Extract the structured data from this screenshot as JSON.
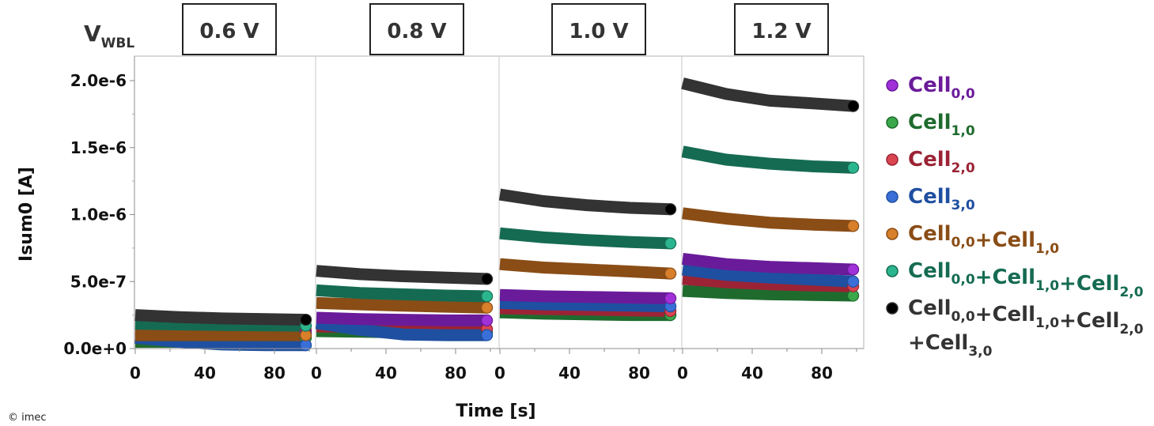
{
  "chart_data": {
    "type": "scatter",
    "title": "",
    "header_label": {
      "main": "V",
      "sub": "WBL"
    },
    "xlabel": "Time [s]",
    "ylabel": "Isum0 [A]",
    "ylim": [
      0,
      2.2e-06
    ],
    "yticks": [
      0,
      5e-07,
      1e-06,
      1.5e-06,
      2e-06
    ],
    "ytick_labels": [
      "0.0e+0",
      "5.0e-7",
      "1.0e-6",
      "1.5e-6",
      "2.0e-6"
    ],
    "xlim_per_panel": [
      0,
      104
    ],
    "xticks": [
      0,
      40,
      80
    ],
    "xtick_labels": [
      "0",
      "40",
      "80"
    ],
    "grid": false,
    "legend_placement": "right",
    "copyright": "© imec",
    "panels": [
      {
        "voltage_label": "0.6 V",
        "series": [
          {
            "name": "Cell0,0",
            "t": [
              0,
              25,
              50,
              75,
              100
            ],
            "values": [
              1.25e-07,
              1.2e-07,
              1.18e-07,
              1.17e-07,
              1.15e-07
            ]
          },
          {
            "name": "Cell1,0",
            "t": [
              0,
              25,
              50,
              75,
              100
            ],
            "values": [
              5e-08,
              5e-08,
              5e-08,
              5e-08,
              8e-08
            ]
          },
          {
            "name": "Cell2,0",
            "t": [
              0,
              25,
              50,
              75,
              100
            ],
            "values": [
              1.5e-07,
              1.45e-07,
              1.4e-07,
              1.38e-07,
              1.35e-07
            ]
          },
          {
            "name": "Cell3,0",
            "t": [
              0,
              25,
              50,
              75,
              100
            ],
            "values": [
              8e-08,
              5e-08,
              3e-08,
              2.5e-08,
              2.5e-08
            ]
          },
          {
            "name": "Cell0,0+Cell1,0",
            "t": [
              0,
              25,
              50,
              75,
              100
            ],
            "values": [
              1e-07,
              1e-07,
              1e-07,
              1e-07,
              1e-07
            ]
          },
          {
            "name": "Cell0,0+Cell1,0+Cell2,0",
            "t": [
              0,
              25,
              50,
              75,
              100
            ],
            "values": [
              1.85e-07,
              1.8e-07,
              1.75e-07,
              1.72e-07,
              1.7e-07
            ]
          },
          {
            "name": "Cell0,0+Cell1,0+Cell2,0+Cell3,0",
            "t": [
              0,
              25,
              50,
              75,
              100
            ],
            "values": [
              2.5e-07,
              2.35e-07,
              2.25e-07,
              2.2e-07,
              2.15e-07
            ]
          }
        ]
      },
      {
        "voltage_label": "0.8 V",
        "series": [
          {
            "name": "Cell0,0",
            "t": [
              0,
              25,
              50,
              75,
              100
            ],
            "values": [
              2.3e-07,
              2.2e-07,
              2.15e-07,
              2.1e-07,
              2.1e-07
            ]
          },
          {
            "name": "Cell1,0",
            "t": [
              0,
              25,
              50,
              75,
              100
            ],
            "values": [
              1.3e-07,
              1.25e-07,
              1.2e-07,
              1.2e-07,
              1.2e-07
            ]
          },
          {
            "name": "Cell2,0",
            "t": [
              0,
              25,
              50,
              75,
              100
            ],
            "values": [
              1.65e-07,
              1.6e-07,
              1.55e-07,
              1.5e-07,
              1.45e-07
            ]
          },
          {
            "name": "Cell3,0",
            "t": [
              0,
              25,
              50,
              75,
              100
            ],
            "values": [
              1.9e-07,
              1.4e-07,
              1.05e-07,
              1e-07,
              1e-07
            ]
          },
          {
            "name": "Cell0,0+Cell1,0",
            "t": [
              0,
              25,
              50,
              75,
              100
            ],
            "values": [
              3.4e-07,
              3.3e-07,
              3.2e-07,
              3.12e-07,
              3.05e-07
            ]
          },
          {
            "name": "Cell0,0+Cell1,0+Cell2,0",
            "t": [
              0,
              25,
              50,
              75,
              100
            ],
            "values": [
              4.35e-07,
              4.15e-07,
              4.05e-07,
              3.95e-07,
              3.9e-07
            ]
          },
          {
            "name": "Cell0,0+Cell1,0+Cell2,0+Cell3,0",
            "t": [
              0,
              25,
              50,
              75,
              100
            ],
            "values": [
              5.8e-07,
              5.55e-07,
              5.4e-07,
              5.3e-07,
              5.2e-07
            ]
          }
        ]
      },
      {
        "voltage_label": "1.0 V",
        "series": [
          {
            "name": "Cell0,0",
            "t": [
              0,
              25,
              50,
              75,
              100
            ],
            "values": [
              4e-07,
              3.9e-07,
              3.85e-07,
              3.8e-07,
              3.75e-07
            ]
          },
          {
            "name": "Cell1,0",
            "t": [
              0,
              25,
              50,
              75,
              100
            ],
            "values": [
              2.7e-07,
              2.6e-07,
              2.55e-07,
              2.5e-07,
              2.5e-07
            ]
          },
          {
            "name": "Cell2,0",
            "t": [
              0,
              25,
              50,
              75,
              100
            ],
            "values": [
              3e-07,
              2.95e-07,
              2.9e-07,
              2.85e-07,
              2.8e-07
            ]
          },
          {
            "name": "Cell3,0",
            "t": [
              0,
              25,
              50,
              75,
              100
            ],
            "values": [
              3.4e-07,
              3.3e-07,
              3.25e-07,
              3.2e-07,
              3.15e-07
            ]
          },
          {
            "name": "Cell0,0+Cell1,0",
            "t": [
              0,
              25,
              50,
              75,
              100
            ],
            "values": [
              6.3e-07,
              6.05e-07,
              5.9e-07,
              5.75e-07,
              5.6e-07
            ]
          },
          {
            "name": "Cell0,0+Cell1,0+Cell2,0",
            "t": [
              0,
              25,
              50,
              75,
              100
            ],
            "values": [
              8.6e-07,
              8.3e-07,
              8.1e-07,
              7.95e-07,
              7.85e-07
            ]
          },
          {
            "name": "Cell0,0+Cell1,0+Cell2,0+Cell3,0",
            "t": [
              0,
              25,
              50,
              75,
              100
            ],
            "values": [
              1.15e-06,
              1.1e-06,
              1.07e-06,
              1.05e-06,
              1.04e-06
            ]
          }
        ]
      },
      {
        "voltage_label": "1.2 V",
        "series": [
          {
            "name": "Cell0,0",
            "t": [
              0,
              25,
              50,
              75,
              100
            ],
            "values": [
              6.7e-07,
              6.3e-07,
              6.1e-07,
              6e-07,
              5.9e-07
            ]
          },
          {
            "name": "Cell1,0",
            "t": [
              0,
              25,
              50,
              75,
              100
            ],
            "values": [
              4.3e-07,
              4.15e-07,
              4.05e-07,
              4e-07,
              3.95e-07
            ]
          },
          {
            "name": "Cell2,0",
            "t": [
              0,
              25,
              50,
              75,
              100
            ],
            "values": [
              5.2e-07,
              4.95e-07,
              4.8e-07,
              4.7e-07,
              4.65e-07
            ]
          },
          {
            "name": "Cell3,0",
            "t": [
              0,
              25,
              50,
              75,
              100
            ],
            "values": [
              5.9e-07,
              5.5e-07,
              5.3e-07,
              5.15e-07,
              5e-07
            ]
          },
          {
            "name": "Cell0,0+Cell1,0",
            "t": [
              0,
              25,
              50,
              75,
              100
            ],
            "values": [
              1.01e-06,
              9.7e-07,
              9.4e-07,
              9.25e-07,
              9.15e-07
            ]
          },
          {
            "name": "Cell0,0+Cell1,0+Cell2,0",
            "t": [
              0,
              25,
              50,
              75,
              100
            ],
            "values": [
              1.47e-06,
              1.41e-06,
              1.38e-06,
              1.36e-06,
              1.35e-06
            ]
          },
          {
            "name": "Cell0,0+Cell1,0+Cell2,0+Cell3,0",
            "t": [
              0,
              25,
              50,
              75,
              100
            ],
            "values": [
              1.98e-06,
              1.9e-06,
              1.85e-06,
              1.83e-06,
              1.81e-06
            ]
          }
        ]
      }
    ],
    "legend": [
      {
        "key": "c00",
        "parts": [
          [
            "Cell",
            "0,0"
          ]
        ],
        "color": "#6a1b9a",
        "marker": "#a030d8"
      },
      {
        "key": "c10",
        "parts": [
          [
            "Cell",
            "1,0"
          ]
        ],
        "color": "#1f6b2e",
        "marker": "#3aa84a"
      },
      {
        "key": "c20",
        "parts": [
          [
            "Cell",
            "2,0"
          ]
        ],
        "color": "#9b2335",
        "marker": "#d9454f"
      },
      {
        "key": "c30",
        "parts": [
          [
            "Cell",
            "3,0"
          ]
        ],
        "color": "#1f4fa0",
        "marker": "#3a6fd8"
      },
      {
        "key": "c00_10",
        "parts": [
          [
            "Cell",
            "0,0"
          ],
          [
            "+Cell",
            "1,0"
          ]
        ],
        "color": "#8a4d16",
        "marker": "#d77f2a"
      },
      {
        "key": "c00_10_20",
        "parts": [
          [
            "Cell",
            "0,0"
          ],
          [
            "+Cell",
            "1,0"
          ],
          [
            "+Cell",
            "2,0"
          ]
        ],
        "color": "#156b52",
        "marker": "#2bb58e"
      },
      {
        "key": "c00_10_20_30",
        "parts": [
          [
            "Cell",
            "0,0"
          ],
          [
            "+Cell",
            "1,0"
          ],
          [
            "+Cell",
            "2,0"
          ]
        ],
        "parts_line2": [
          [
            "+Cell",
            "3,0"
          ]
        ],
        "color": "#333333",
        "marker": "#000000"
      }
    ],
    "series_colors": {
      "band": [
        "#6a1b9a",
        "#1f6b2e",
        "#9b2335",
        "#1f4fa0",
        "#8a4d16",
        "#156b52",
        "#333333"
      ],
      "marker": [
        "#a030d8",
        "#3aa84a",
        "#d9454f",
        "#3a6fd8",
        "#d77f2a",
        "#2bb58e",
        "#000000"
      ]
    }
  }
}
